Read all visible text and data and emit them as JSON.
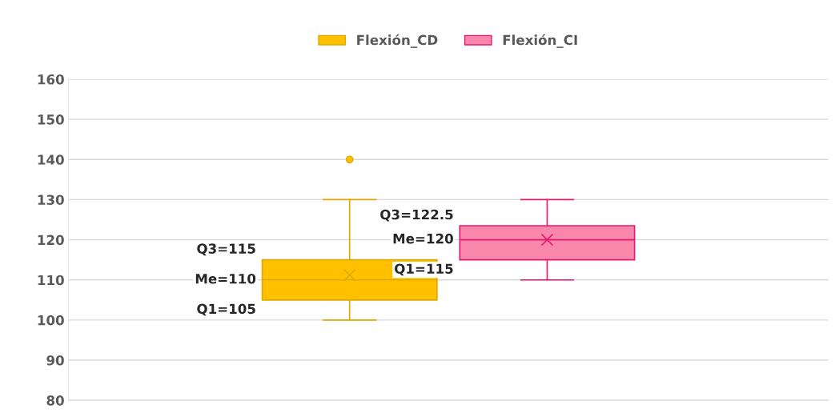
{
  "chart_data": {
    "type": "box",
    "categories": [
      null
    ],
    "series": [
      {
        "name": "Flexión_CD",
        "color": "#ffc000",
        "boxes": [
          {
            "low": 100,
            "q1": 105,
            "median": 110,
            "q3": 115,
            "high": 130,
            "mean": 111.2,
            "outliers": [
              140
            ]
          }
        ]
      },
      {
        "name": "Flexión_CI",
        "color": "#f887ab",
        "boxes": [
          {
            "low": 110,
            "q1": 115,
            "median": 120,
            "q3": 123.5,
            "high": 130,
            "mean": 120
          }
        ]
      }
    ],
    "annotations": [
      "Q3=115",
      "Me=110",
      "Q1=105",
      "Q3=122.5",
      "Me=120",
      "Q1=115"
    ],
    "ylim": [
      80,
      160
    ],
    "yticks": [
      80,
      90,
      100,
      110,
      120,
      130,
      140,
      150,
      160
    ],
    "grid": "y",
    "legend": "top",
    "tick_labels": "y"
  }
}
